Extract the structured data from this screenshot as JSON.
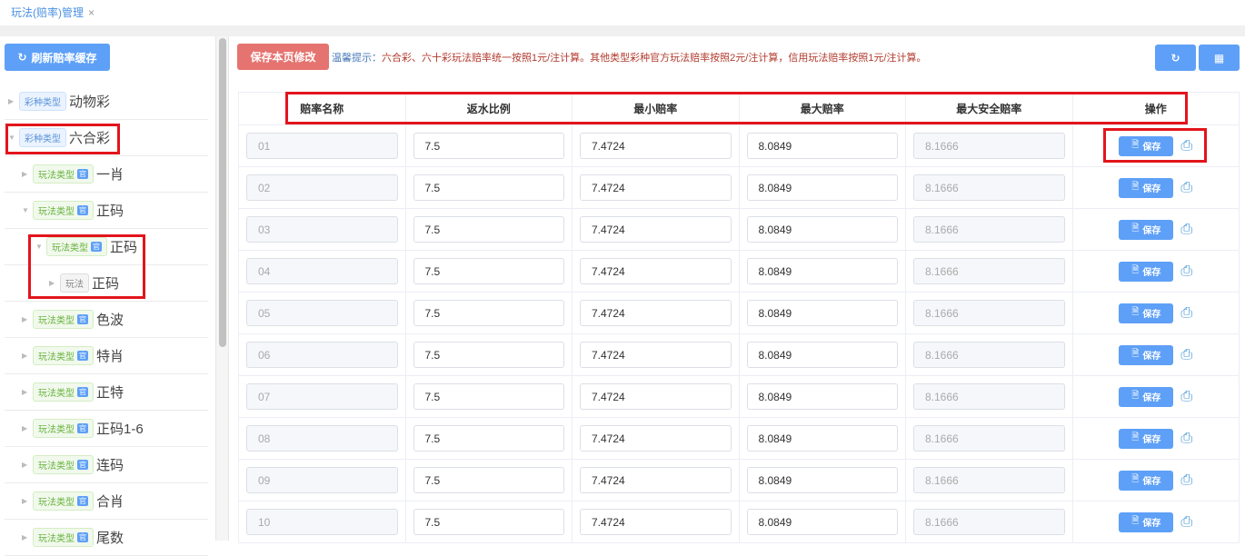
{
  "tab": {
    "title": "玩法(赔率)管理",
    "close": "×"
  },
  "left": {
    "refresh_label": "刷新赔率缓存",
    "tree": [
      {
        "level": 0,
        "tag": "彩种类型",
        "tagType": "type",
        "label": "动物彩",
        "expanded": false
      },
      {
        "level": 0,
        "tag": "彩种类型",
        "tagType": "type",
        "label": "六合彩",
        "expanded": true
      },
      {
        "level": 1,
        "tag": "玩法类型",
        "tagType": "play",
        "guan": "官",
        "label": "一肖",
        "expanded": false
      },
      {
        "level": 1,
        "tag": "玩法类型",
        "tagType": "play",
        "guan": "官",
        "label": "正码",
        "expanded": true
      },
      {
        "level": 2,
        "tag": "玩法类型",
        "tagType": "play",
        "guan": "官",
        "label": "正码",
        "expanded": true
      },
      {
        "level": 3,
        "tag": "玩法",
        "tagType": "leaf",
        "label": "正码",
        "expanded": false
      },
      {
        "level": 1,
        "tag": "玩法类型",
        "tagType": "play",
        "guan": "官",
        "label": "色波",
        "expanded": false
      },
      {
        "level": 1,
        "tag": "玩法类型",
        "tagType": "play",
        "guan": "官",
        "label": "特肖",
        "expanded": false
      },
      {
        "level": 1,
        "tag": "玩法类型",
        "tagType": "play",
        "guan": "官",
        "label": "正特",
        "expanded": false
      },
      {
        "level": 1,
        "tag": "玩法类型",
        "tagType": "play",
        "guan": "官",
        "label": "正码1-6",
        "expanded": false
      },
      {
        "level": 1,
        "tag": "玩法类型",
        "tagType": "play",
        "guan": "官",
        "label": "连码",
        "expanded": false
      },
      {
        "level": 1,
        "tag": "玩法类型",
        "tagType": "play",
        "guan": "官",
        "label": "合肖",
        "expanded": false
      },
      {
        "level": 1,
        "tag": "玩法类型",
        "tagType": "play",
        "guan": "官",
        "label": "尾数",
        "expanded": false
      }
    ]
  },
  "toolbar": {
    "save_page_label": "保存本页修改",
    "tip_prefix": "温馨提示：",
    "tip_text": "六合彩、六十彩玩法赔率统一按照1元/注计算。其他类型彩种官方玩法赔率按照2元/注计算，信用玩法赔率按照1元/注计算。"
  },
  "table": {
    "columns": [
      "赔率名称",
      "返水比例",
      "最小赔率",
      "最大赔率",
      "最大安全赔率",
      "操作"
    ],
    "save_label": "保存",
    "rows": [
      [
        "01",
        "7.5",
        "7.4724",
        "8.0849",
        "8.1666"
      ],
      [
        "02",
        "7.5",
        "7.4724",
        "8.0849",
        "8.1666"
      ],
      [
        "03",
        "7.5",
        "7.4724",
        "8.0849",
        "8.1666"
      ],
      [
        "04",
        "7.5",
        "7.4724",
        "8.0849",
        "8.1666"
      ],
      [
        "05",
        "7.5",
        "7.4724",
        "8.0849",
        "8.1666"
      ],
      [
        "06",
        "7.5",
        "7.4724",
        "8.0849",
        "8.1666"
      ],
      [
        "07",
        "7.5",
        "7.4724",
        "8.0849",
        "8.1666"
      ],
      [
        "08",
        "7.5",
        "7.4724",
        "8.0849",
        "8.1666"
      ],
      [
        "09",
        "7.5",
        "7.4724",
        "8.0849",
        "8.1666"
      ],
      [
        "10",
        "7.5",
        "7.4724",
        "8.0849",
        "8.1666"
      ]
    ]
  },
  "colors": {
    "primary": "#5ea0f7",
    "danger": "#e57470",
    "annotation": "#e3141c"
  }
}
